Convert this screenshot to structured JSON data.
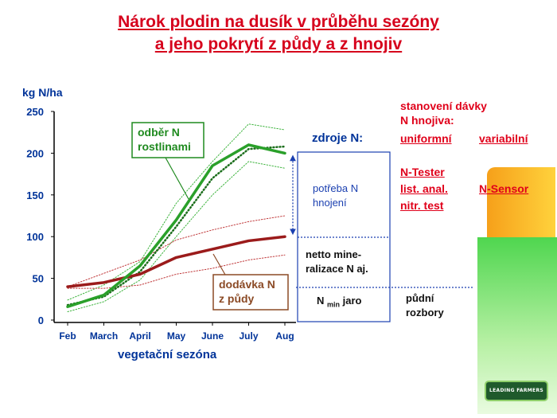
{
  "title": {
    "line1": "Nárok plodin na dusík v průběhu sezóny",
    "line2": "a jeho pokrytí z půdy a z hnojiv"
  },
  "chart_data": {
    "type": "line",
    "ylabel": "kg N/ha",
    "xlabel": "vegetační sezóna",
    "categories": [
      "Feb",
      "March",
      "April",
      "May",
      "June",
      "July",
      "Aug"
    ],
    "yticks": [
      0,
      50,
      100,
      150,
      200,
      250
    ],
    "ylim": [
      0,
      250
    ],
    "grid": false,
    "series": [
      {
        "id": "uptake",
        "x": [
          0,
          1,
          2,
          3,
          4,
          5,
          6
        ],
        "values": [
          16,
          30,
          65,
          120,
          185,
          210,
          200
        ],
        "color": "#2aa02a",
        "style": "solid-thick"
      },
      {
        "id": "uptake_dotted",
        "x": [
          0,
          1,
          2,
          3,
          4,
          5,
          6
        ],
        "values": [
          18,
          28,
          58,
          112,
          170,
          205,
          208
        ],
        "color": "#1c6e1c",
        "style": "dotted"
      },
      {
        "id": "uptake_upper",
        "x": [
          0,
          1,
          2,
          3,
          4,
          5,
          6
        ],
        "values": [
          24,
          42,
          70,
          140,
          190,
          235,
          228
        ],
        "color": "#3cb33c",
        "style": "thin-dotted"
      },
      {
        "id": "uptake_lower",
        "x": [
          0,
          1,
          2,
          3,
          4,
          5,
          6
        ],
        "values": [
          10,
          22,
          48,
          100,
          150,
          190,
          182
        ],
        "color": "#3cb33c",
        "style": "thin-dotted"
      },
      {
        "id": "soil",
        "x": [
          0,
          1,
          2,
          3,
          4,
          5,
          6
        ],
        "values": [
          40,
          45,
          55,
          75,
          85,
          95,
          100
        ],
        "color": "#9b1b1b",
        "style": "solid-thick"
      },
      {
        "id": "soil_upper",
        "x": [
          0,
          1,
          2,
          3,
          4,
          5,
          6
        ],
        "values": [
          40,
          56,
          72,
          96,
          108,
          118,
          125
        ],
        "color": "#c0393b",
        "style": "thin-dotted"
      },
      {
        "id": "soil_lower",
        "x": [
          0,
          1,
          2,
          3,
          4,
          5,
          6
        ],
        "values": [
          38,
          38,
          42,
          55,
          62,
          72,
          78
        ],
        "color": "#c0393b",
        "style": "thin-dotted"
      }
    ],
    "annotations": {
      "uptake_label": "odběr N\nrostlinami",
      "soil_label": "dodávka N\nz půdy",
      "need_arrow": {
        "x": 6,
        "from": 200,
        "to": 100
      }
    }
  },
  "panel": {
    "heading": "zdroje N:",
    "need": "potřeba N\nhnojení",
    "mineral": "netto mine-\nralizace N aj.",
    "nmin_prefix": "N ",
    "nmin_sub": "min",
    "nmin_suffix": " jaro",
    "soil_tests": "půdní\nrozbory"
  },
  "dose": {
    "heading": "stanovení dávky\nN hnojiva:",
    "uniform": "uniformní",
    "variable": "variabilní",
    "ntester": "N-Tester",
    "list_anal": "list. anal.",
    "nitr_test": "nitr. test",
    "nsensor": "N-Sensor"
  },
  "logo_text": "LEADING FARMERS",
  "colors": {
    "title": "#d6001c",
    "axis_text": "#003399",
    "panel_border": "#1a3fb0"
  }
}
